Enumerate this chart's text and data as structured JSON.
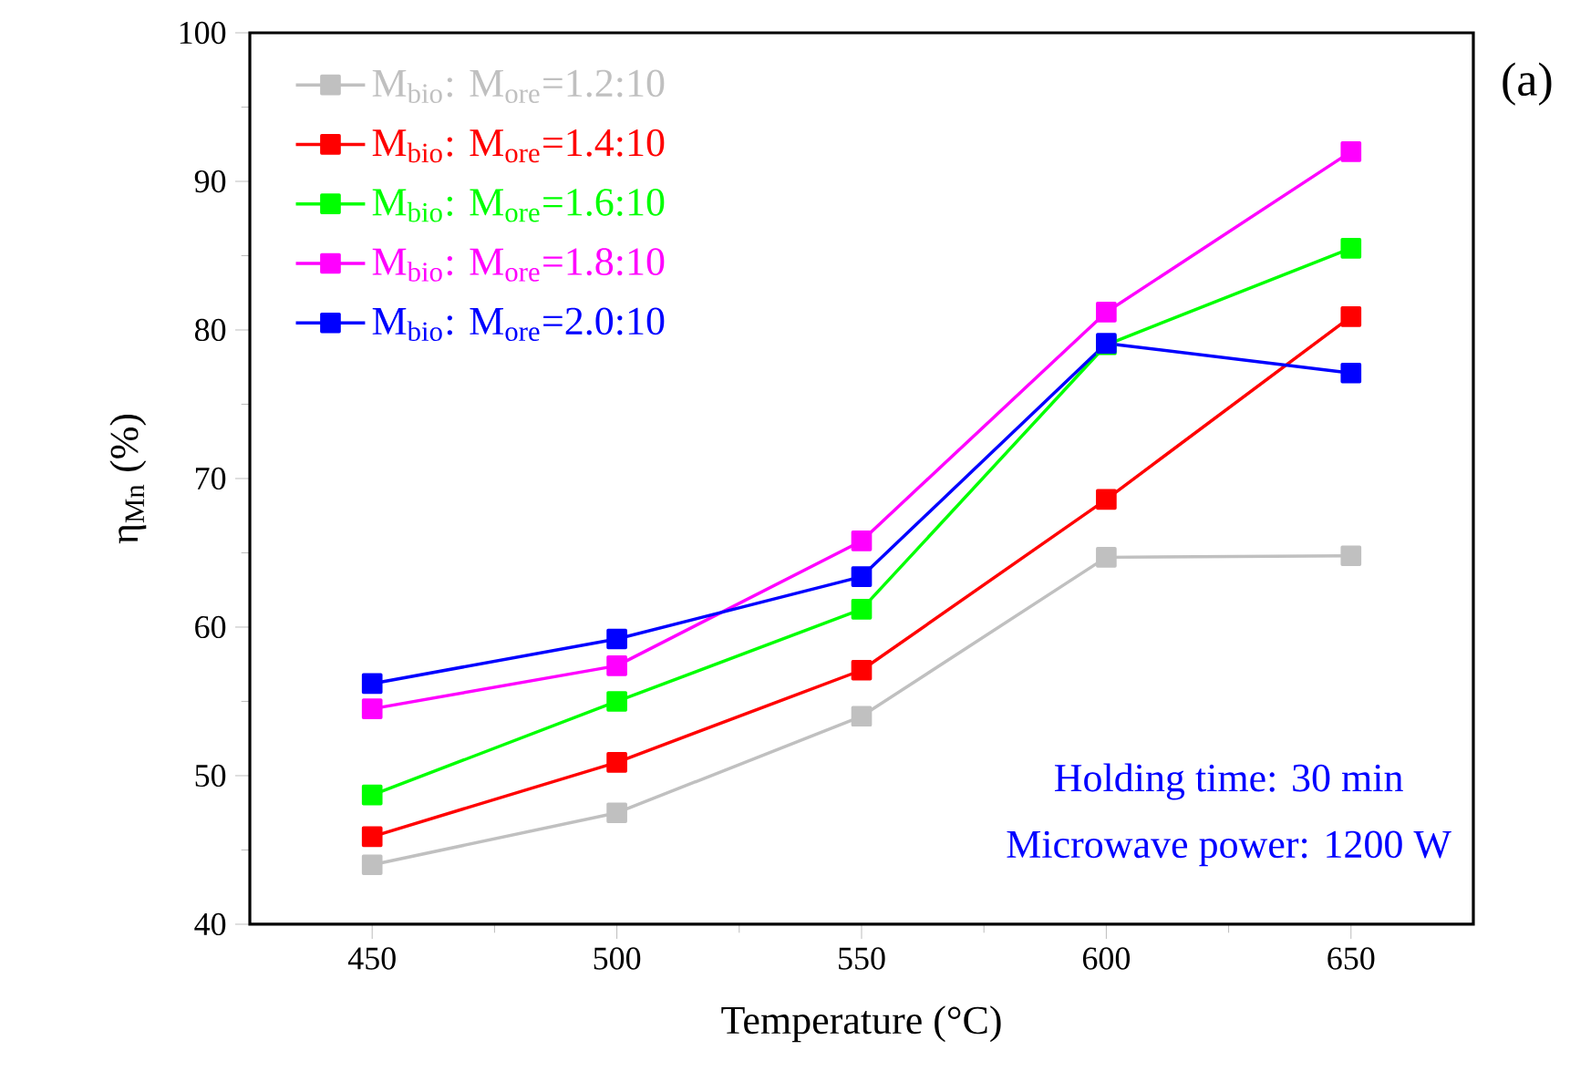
{
  "chart_data": {
    "type": "line",
    "xlabel": "Temperature (°C)",
    "ylabel": "η$_{Mn}$ (%)",
    "x": [
      450,
      500,
      550,
      600,
      650
    ],
    "xlim": [
      425,
      675
    ],
    "xticks": [
      450,
      500,
      550,
      600,
      650
    ],
    "ylim": [
      40,
      100
    ],
    "yticks": [
      40,
      50,
      60,
      70,
      80,
      90,
      100
    ],
    "series": [
      {
        "name": "M$_{bio}$: M$_{ore}$=1.2:10",
        "color": "#c0c0c0",
        "values": [
          44.0,
          47.5,
          54.0,
          64.7,
          64.8
        ]
      },
      {
        "name": "M$_{bio}$: M$_{ore}$=1.4:10",
        "color": "#ff0000",
        "values": [
          45.9,
          50.9,
          57.1,
          68.6,
          80.9
        ]
      },
      {
        "name": "M$_{bio}$: M$_{ore}$=1.6:10",
        "color": "#00ff00",
        "values": [
          48.7,
          55.0,
          61.2,
          79.0,
          85.5
        ]
      },
      {
        "name": "M$_{bio}$: M$_{ore}$=1.8:10",
        "color": "#ff00ff",
        "values": [
          54.5,
          57.4,
          65.8,
          81.2,
          92.0
        ]
      },
      {
        "name": "M$_{bio}$: M$_{ore}$=2.0:10",
        "color": "#0000ff",
        "values": [
          56.2,
          59.2,
          63.4,
          79.1,
          77.1
        ]
      }
    ],
    "annotations": [
      "(a)",
      "Holding time: 30 min",
      "Microwave power: 1200 W"
    ],
    "legend": "top left",
    "grid": false,
    "marker": "square",
    "line_style": "solid"
  }
}
